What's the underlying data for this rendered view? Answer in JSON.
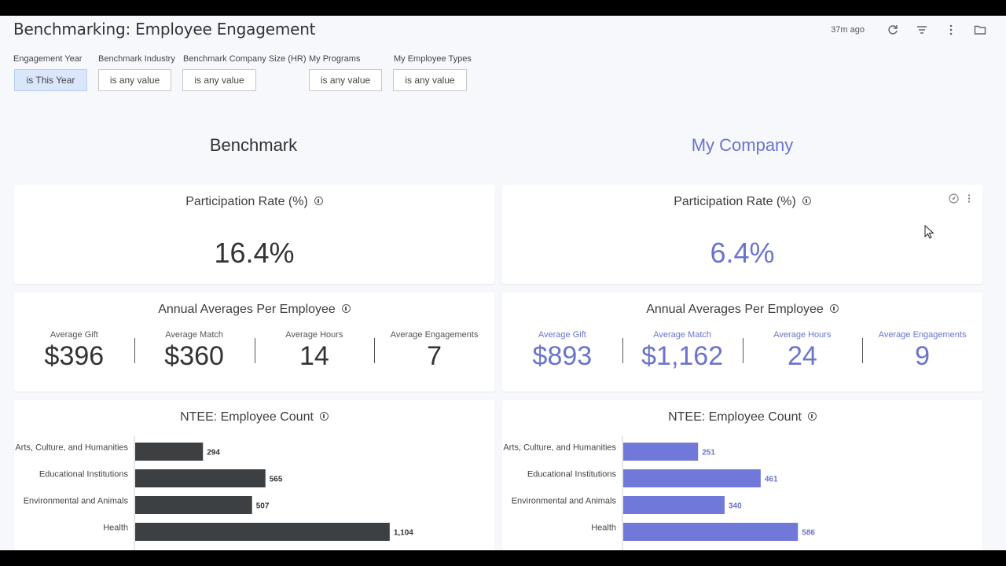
{
  "header": {
    "title": "Benchmarking: Employee Engagement",
    "updated": "37m ago",
    "icons": [
      "refresh-icon",
      "filter-icon",
      "more-vert-icon",
      "folder-icon"
    ]
  },
  "filters": [
    {
      "label": "Engagement Year",
      "value": "is This Year",
      "active": true
    },
    {
      "label": "Benchmark Industry",
      "value": "is any value",
      "active": false
    },
    {
      "label": "Benchmark Company Size (HR)",
      "value": "is any value",
      "active": false
    },
    {
      "label": "My Programs",
      "value": "is any value",
      "active": false
    },
    {
      "label": "My Employee Types",
      "value": "is any value",
      "active": false
    }
  ],
  "sections": {
    "benchmark": "Benchmark",
    "my_company": "My Company"
  },
  "benchmark": {
    "participation": {
      "title": "Participation Rate (%)",
      "value": "16.4%"
    },
    "averages": {
      "title": "Annual Averages Per Employee",
      "items": [
        {
          "label": "Average Gift",
          "value": "$396"
        },
        {
          "label": "Average Match",
          "value": "$360"
        },
        {
          "label": "Average Hours",
          "value": "14"
        },
        {
          "label": "Average Engagements",
          "value": "7"
        }
      ]
    },
    "ntee": {
      "title": "NTEE: Employee Count"
    }
  },
  "my_company": {
    "participation": {
      "title": "Participation Rate (%)",
      "value": "6.4%"
    },
    "averages": {
      "title": "Annual Averages Per Employee",
      "items": [
        {
          "label": "Average Gift",
          "value": "$893"
        },
        {
          "label": "Average Match",
          "value": "$1,162"
        },
        {
          "label": "Average Hours",
          "value": "24"
        },
        {
          "label": "Average Engagements",
          "value": "9"
        }
      ]
    },
    "ntee": {
      "title": "NTEE: Employee Count"
    }
  },
  "colors": {
    "benchmark_bar": "#3c4043",
    "my_company_bar": "#7079d9",
    "accent": "#6b74cc"
  },
  "chart_data": [
    {
      "type": "bar",
      "orientation": "horizontal",
      "title": "NTEE: Employee Count",
      "categories": [
        "Arts, Culture, and Humanities",
        "Educational Institutions",
        "Environmental and Animals",
        "Health"
      ],
      "values": [
        294,
        565,
        507,
        1104
      ],
      "value_labels": [
        "294",
        "565",
        "507",
        "1,104"
      ],
      "xlim": [
        0,
        1500
      ]
    },
    {
      "type": "bar",
      "orientation": "horizontal",
      "title": "NTEE: Employee Count",
      "categories": [
        "Arts, Culture, and Humanities",
        "Educational Institutions",
        "Environmental and Animals",
        "Health"
      ],
      "values": [
        251,
        461,
        340,
        586
      ],
      "value_labels": [
        "251",
        "461",
        "340",
        "586"
      ],
      "xlim": [
        0,
        1160
      ]
    }
  ]
}
